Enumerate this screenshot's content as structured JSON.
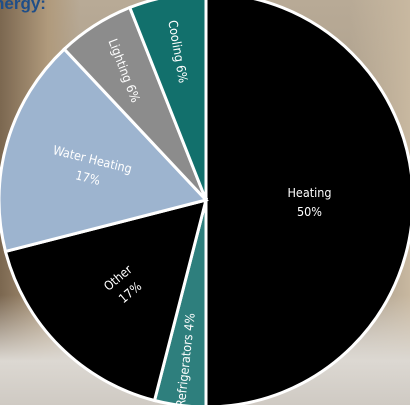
{
  "header": {
    "title_fragment": "nergy:"
  },
  "chart_data": {
    "type": "pie",
    "labels": [
      "Heating",
      "Refrigerators",
      "Other",
      "Water Heating",
      "Lighting",
      "Cooling"
    ],
    "values": [
      50,
      4,
      17,
      17,
      6,
      6
    ],
    "value_labels": [
      "50%",
      "4%",
      "17%",
      "17%",
      "6%",
      "6%"
    ],
    "colors": [
      "#000000",
      "#2e7f7d",
      "#000000",
      "#9db4cf",
      "#8c8c8c",
      "#12706c"
    ],
    "edge_color": "#ffffff"
  }
}
